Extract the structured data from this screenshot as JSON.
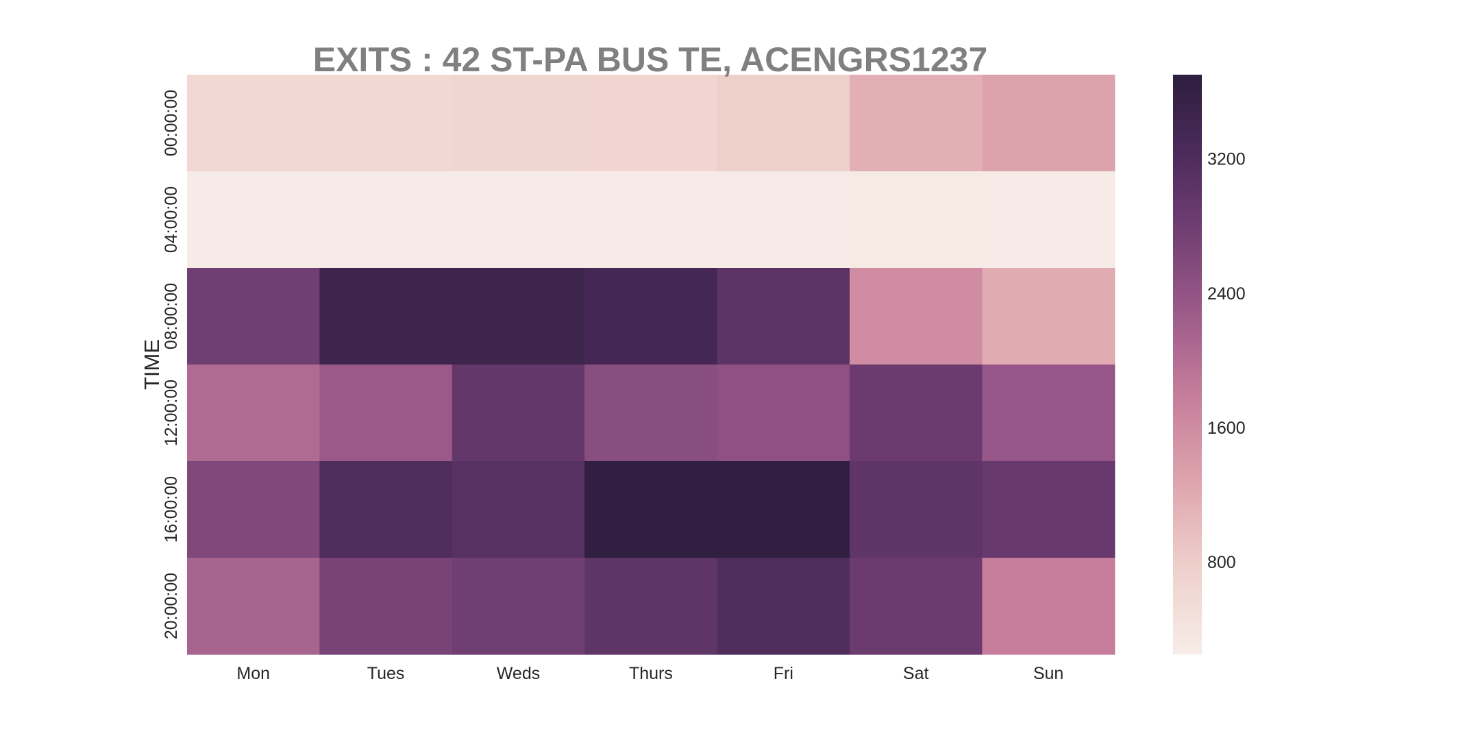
{
  "chart_data": {
    "type": "heatmap",
    "title": "EXITS : 42 ST-PA BUS TE, ACENGRS1237",
    "xlabel": "",
    "ylabel": "TIME",
    "x_categories": [
      "Mon",
      "Tues",
      "Weds",
      "Thurs",
      "Fri",
      "Sat",
      "Sun"
    ],
    "y_categories": [
      "00:00:00",
      "04:00:00",
      "08:00:00",
      "12:00:00",
      "16:00:00",
      "20:00:00"
    ],
    "values": [
      [
        620,
        620,
        660,
        680,
        760,
        1150,
        1300
      ],
      [
        280,
        280,
        280,
        280,
        280,
        300,
        280
      ],
      [
        2800,
        3450,
        3450,
        3350,
        3050,
        1600,
        1200
      ],
      [
        2050,
        2300,
        2950,
        2500,
        2450,
        2850,
        2350
      ],
      [
        2600,
        3200,
        3100,
        3650,
        3650,
        3000,
        2900
      ],
      [
        2150,
        2700,
        2800,
        3000,
        3200,
        2850,
        1800
      ]
    ],
    "colorbar": {
      "range": [
        250,
        3700
      ],
      "ticks": [
        800,
        1600,
        2400,
        3200
      ],
      "tick_labels": [
        "800",
        "1600",
        "2400",
        "3200"
      ]
    },
    "grid": false,
    "colors": {
      "low": "#f7ede8",
      "high": "#2d1e3e",
      "title": "#808080"
    }
  }
}
